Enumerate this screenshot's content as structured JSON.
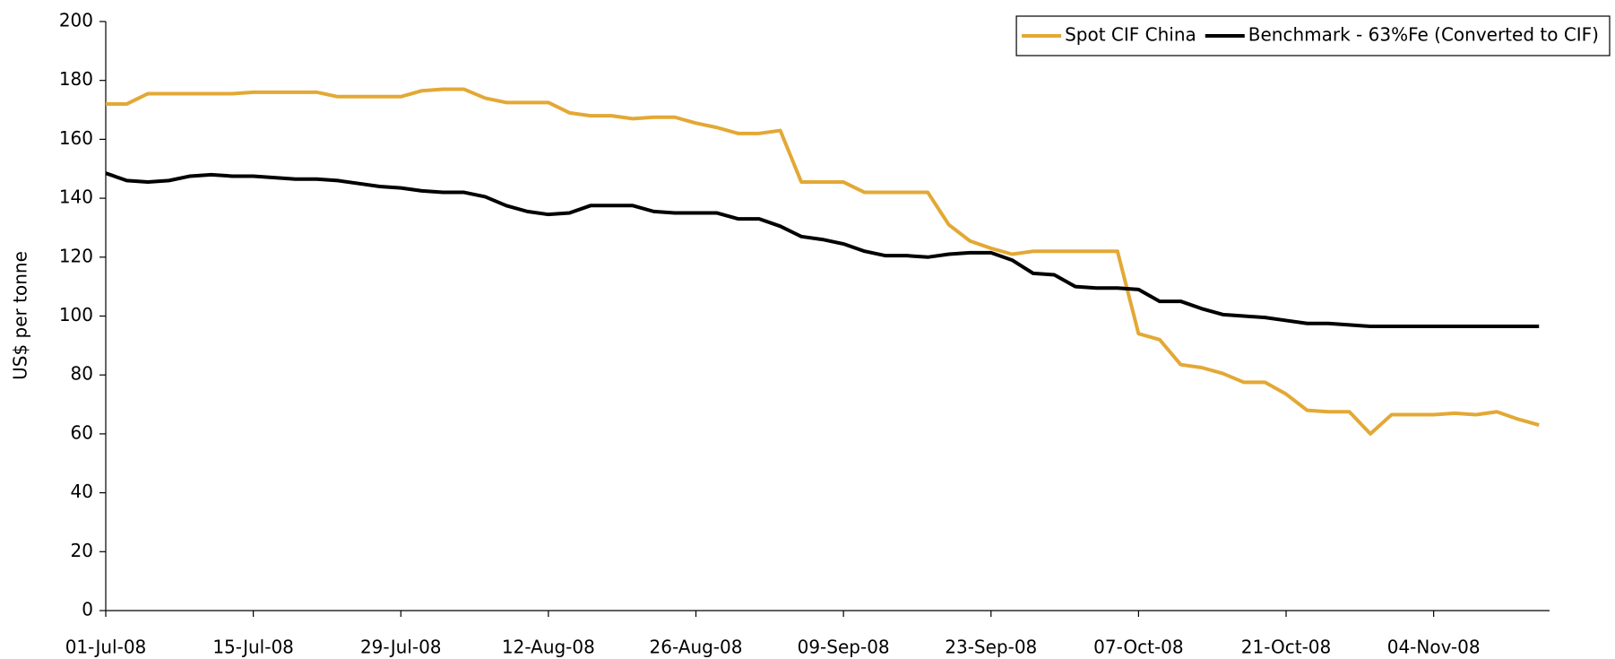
{
  "chart_data": {
    "type": "line",
    "y_label": "US$ per tonne",
    "x": [
      "2008-07-01",
      "2008-07-03",
      "2008-07-05",
      "2008-07-07",
      "2008-07-09",
      "2008-07-11",
      "2008-07-13",
      "2008-07-15",
      "2008-07-17",
      "2008-07-19",
      "2008-07-21",
      "2008-07-23",
      "2008-07-25",
      "2008-07-27",
      "2008-07-29",
      "2008-07-31",
      "2008-08-02",
      "2008-08-04",
      "2008-08-06",
      "2008-08-08",
      "2008-08-10",
      "2008-08-12",
      "2008-08-14",
      "2008-08-16",
      "2008-08-18",
      "2008-08-20",
      "2008-08-22",
      "2008-08-24",
      "2008-08-26",
      "2008-08-28",
      "2008-08-30",
      "2008-09-01",
      "2008-09-03",
      "2008-09-05",
      "2008-09-07",
      "2008-09-09",
      "2008-09-11",
      "2008-09-13",
      "2008-09-15",
      "2008-09-17",
      "2008-09-19",
      "2008-09-21",
      "2008-09-23",
      "2008-09-25",
      "2008-09-27",
      "2008-09-29",
      "2008-10-01",
      "2008-10-03",
      "2008-10-05",
      "2008-10-07",
      "2008-10-09",
      "2008-10-11",
      "2008-10-13",
      "2008-10-15",
      "2008-10-17",
      "2008-10-19",
      "2008-10-21",
      "2008-10-23",
      "2008-10-25",
      "2008-10-27",
      "2008-10-29",
      "2008-10-31",
      "2008-11-02",
      "2008-11-04",
      "2008-11-06",
      "2008-11-08",
      "2008-11-10",
      "2008-11-12",
      "2008-11-14"
    ],
    "series": [
      {
        "name": "Spot CIF China",
        "color": "#e3a835",
        "values": [
          172,
          172,
          175.5,
          175.5,
          175.5,
          175.5,
          175.5,
          176,
          176,
          176,
          176,
          174.5,
          174.5,
          174.5,
          174.5,
          176.5,
          177,
          177,
          174,
          172.5,
          172.5,
          172.5,
          169,
          168,
          168,
          167,
          167.5,
          167.5,
          165.5,
          164,
          162,
          162,
          163,
          145.5,
          145.5,
          145.5,
          142,
          142,
          142,
          142,
          131,
          125.5,
          123,
          121,
          122,
          122,
          122,
          122,
          122,
          94,
          92,
          83.5,
          82.5,
          80.5,
          77.5,
          77.5,
          73.5,
          68,
          67.5,
          67.5,
          60,
          66.5,
          66.5,
          66.5,
          67,
          66.5,
          67.5,
          65,
          63
        ]
      },
      {
        "name": "Benchmark - 63%Fe (Converted to CIF)",
        "color": "#000000",
        "values": [
          148.5,
          146,
          145.5,
          146,
          147.5,
          148,
          147.5,
          147.5,
          147,
          146.5,
          146.5,
          146,
          145,
          144,
          143.5,
          142.5,
          142,
          142,
          140.5,
          137.5,
          135.5,
          134.5,
          135,
          137.5,
          137.5,
          137.5,
          135.5,
          135,
          135,
          135,
          133,
          133,
          130.5,
          127,
          126,
          124.5,
          122,
          120.5,
          120.5,
          120,
          121,
          121.5,
          121.5,
          119,
          114.5,
          114,
          110,
          109.5,
          109.5,
          109,
          105,
          105,
          102.5,
          100.5,
          100,
          99.5,
          98.5,
          97.5,
          97.5,
          97,
          96.5,
          96.5,
          96.5,
          96.5,
          96.5,
          96.5,
          96.5,
          96.5,
          96.5
        ]
      }
    ],
    "xlim": [
      "2008-07-01",
      "2008-11-15"
    ],
    "xticks": [
      {
        "value": "2008-07-01",
        "label": "01-Jul-08"
      },
      {
        "value": "2008-07-15",
        "label": "15-Jul-08"
      },
      {
        "value": "2008-07-29",
        "label": "29-Jul-08"
      },
      {
        "value": "2008-08-12",
        "label": "12-Aug-08"
      },
      {
        "value": "2008-08-26",
        "label": "26-Aug-08"
      },
      {
        "value": "2008-09-09",
        "label": "09-Sep-08"
      },
      {
        "value": "2008-09-23",
        "label": "23-Sep-08"
      },
      {
        "value": "2008-10-07",
        "label": "07-Oct-08"
      },
      {
        "value": "2008-10-21",
        "label": "21-Oct-08"
      },
      {
        "value": "2008-11-04",
        "label": "04-Nov-08"
      }
    ],
    "ylim": [
      0,
      200
    ],
    "yticks": [
      0,
      20,
      40,
      60,
      80,
      100,
      120,
      140,
      160,
      180,
      200
    ],
    "grid": false,
    "legend": "top-right"
  }
}
